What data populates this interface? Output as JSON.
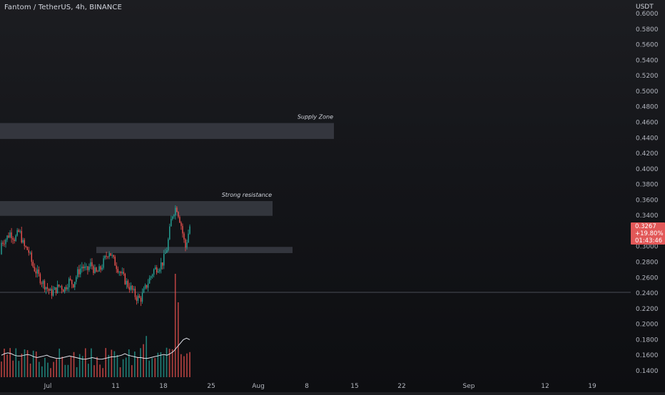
{
  "header": {
    "title": "Fantom / TetherUS, 4h, BINANCE",
    "unit": "USDT"
  },
  "price_tag": {
    "price": "0.3267",
    "change": "+19.80%",
    "countdown": "01:43:46",
    "color": "#e25858"
  },
  "colors": {
    "up": "#26a69a",
    "down": "#ef5350",
    "zone": "#3a3c44",
    "volume_ma": "#e0e3eb",
    "crosshair": "#5d606b"
  },
  "chart_data": {
    "type": "candlestick",
    "title": "Fantom / TetherUS, 4h, BINANCE",
    "y_axis": {
      "unit": "USDT",
      "ticks": [
        "0.6000",
        "0.5800",
        "0.5600",
        "0.5400",
        "0.5200",
        "0.5000",
        "0.4800",
        "0.4600",
        "0.4400",
        "0.4200",
        "0.4000",
        "0.3800",
        "0.3600",
        "0.3400",
        "0.3200",
        "0.3000",
        "0.2800",
        "0.2600",
        "0.2400",
        "0.2200",
        "0.2000",
        "0.1800",
        "0.1600",
        "0.1400"
      ],
      "range": [
        0.132,
        0.61
      ]
    },
    "x_axis": {
      "ticks": [
        "Jul",
        "11",
        "18",
        "25",
        "Aug",
        "8",
        "15",
        "22",
        "Sep",
        "12",
        "19"
      ]
    },
    "horizontal_line": 0.241,
    "zones": [
      {
        "label": "Supply Zone",
        "low": 0.4385,
        "high": 0.459
      },
      {
        "label": "Strong resistance",
        "low": 0.3395,
        "high": 0.3585
      },
      {
        "label": "",
        "low": 0.2915,
        "high": 0.2995
      }
    ],
    "price_path": [
      [
        0.29,
        0.305
      ],
      [
        0.292,
        0.31
      ],
      [
        0.3,
        0.318
      ],
      [
        0.296,
        0.31
      ],
      [
        0.305,
        0.32
      ],
      [
        0.315,
        0.3
      ],
      [
        0.31,
        0.295
      ],
      [
        0.29,
        0.275
      ],
      [
        0.27,
        0.265
      ],
      [
        0.262,
        0.255
      ],
      [
        0.252,
        0.248
      ],
      [
        0.247,
        0.24
      ],
      [
        0.238,
        0.244
      ],
      [
        0.245,
        0.25
      ],
      [
        0.248,
        0.245
      ],
      [
        0.25,
        0.256
      ],
      [
        0.255,
        0.252
      ],
      [
        0.26,
        0.266
      ],
      [
        0.265,
        0.275
      ],
      [
        0.272,
        0.268
      ],
      [
        0.27,
        0.278
      ],
      [
        0.275,
        0.265
      ],
      [
        0.262,
        0.27
      ],
      [
        0.275,
        0.283
      ],
      [
        0.288,
        0.295
      ],
      [
        0.29,
        0.282
      ],
      [
        0.28,
        0.272
      ],
      [
        0.268,
        0.262
      ],
      [
        0.258,
        0.252
      ],
      [
        0.248,
        0.245
      ],
      [
        0.242,
        0.235
      ],
      [
        0.228,
        0.232
      ],
      [
        0.235,
        0.245
      ],
      [
        0.25,
        0.258
      ],
      [
        0.262,
        0.27
      ],
      [
        0.268,
        0.274
      ],
      [
        0.272,
        0.28
      ],
      [
        0.285,
        0.3
      ],
      [
        0.31,
        0.34
      ],
      [
        0.348,
        0.352
      ],
      [
        0.345,
        0.33
      ],
      [
        0.32,
        0.298
      ],
      [
        0.305,
        0.326
      ]
    ],
    "volume_bars": 66,
    "volume_path": [
      0.16,
      0.162,
      0.163,
      0.162,
      0.16,
      0.159,
      0.159,
      0.16,
      0.161,
      0.16,
      0.158,
      0.157,
      0.158,
      0.159,
      0.16,
      0.158,
      0.157,
      0.156,
      0.156,
      0.157,
      0.158,
      0.159,
      0.158,
      0.157,
      0.156,
      0.155,
      0.155,
      0.156,
      0.157,
      0.156,
      0.155,
      0.155,
      0.156,
      0.157,
      0.158,
      0.158,
      0.159,
      0.16,
      0.162,
      0.16,
      0.159,
      0.158,
      0.157,
      0.157,
      0.156,
      0.156,
      0.157,
      0.158,
      0.159,
      0.16,
      0.161,
      0.16,
      0.162,
      0.165,
      0.17,
      0.175,
      0.18,
      0.182,
      0.18
    ]
  }
}
